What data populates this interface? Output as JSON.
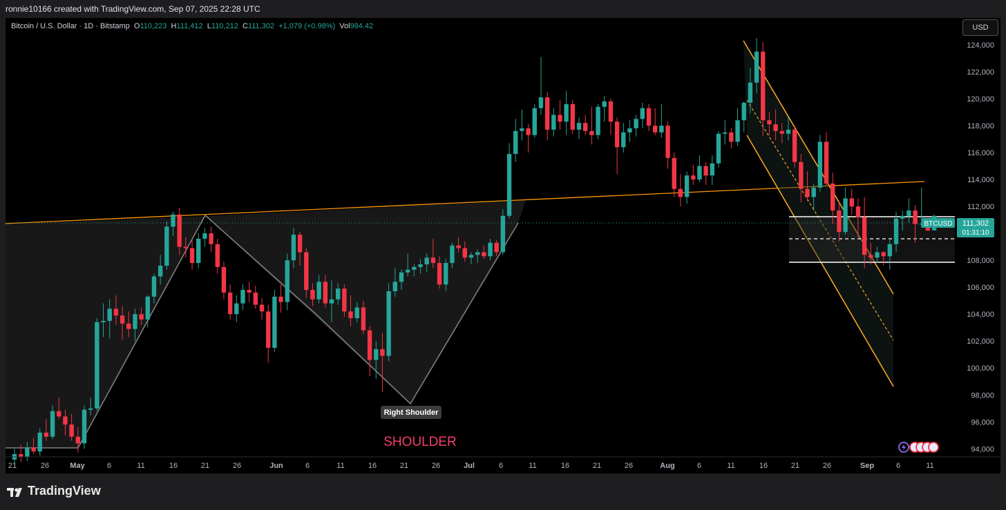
{
  "header": {
    "attribution": "ronnie10166 created with TradingView.com, Sep 07, 2025 22:28 UTC"
  },
  "legend": {
    "symbol": "Bitcoin / U.S. Dollar · 1D · Bitstamp",
    "o_label": "O",
    "o_value": "110,223",
    "h_label": "H",
    "h_value": "111,412",
    "l_label": "L",
    "l_value": "110,212",
    "c_label": "C",
    "c_value": "111,302",
    "change": "+1,079 (+0.98%)",
    "vol_label": "Vol",
    "vol_value": "984.42"
  },
  "currency_button": "USD",
  "price_tag": {
    "ticker": "BTCUSD",
    "price": "111,302",
    "countdown": "01:31:10"
  },
  "annotations": {
    "right_shoulder": "Right Shoulder",
    "shoulder": "SHOULDER"
  },
  "footer": {
    "brand": "TradingView"
  },
  "colors": {
    "up": "#26a69a",
    "down": "#f23645",
    "neckline": "#ff9800",
    "channel": "#f5a623",
    "pattern": "#808080",
    "shoulder_text": "#f23d6d"
  },
  "chart_data": {
    "type": "candlestick",
    "ylim": [
      93400,
      126000
    ],
    "y_ticks": [
      "94,000",
      "96,000",
      "98,000",
      "100,000",
      "102,000",
      "104,000",
      "106,000",
      "108,000",
      "110,000",
      "112,000",
      "114,000",
      "116,000",
      "118,000",
      "120,000",
      "122,000",
      "124,000"
    ],
    "x_tick_labels": [
      "21",
      "26",
      "May",
      "6",
      "11",
      "16",
      "21",
      "26",
      "Jun",
      "6",
      "11",
      "16",
      "21",
      "26",
      "Jul",
      "6",
      "11",
      "16",
      "21",
      "26",
      "Aug",
      "6",
      "11",
      "16",
      "21",
      "26",
      "Sep",
      "6",
      "11"
    ],
    "x_start_date": "2025-04-18",
    "candles": [
      [
        93200,
        94000,
        92800,
        93600
      ],
      [
        93600,
        94300,
        93000,
        93400
      ],
      [
        93400,
        94500,
        93100,
        94100
      ],
      [
        94100,
        94800,
        93600,
        93800
      ],
      [
        93800,
        95500,
        93500,
        95200
      ],
      [
        95200,
        96200,
        94600,
        94900
      ],
      [
        94900,
        97200,
        94700,
        96800
      ],
      [
        96800,
        97800,
        96200,
        96400
      ],
      [
        96400,
        96900,
        95000,
        95800
      ],
      [
        95800,
        96600,
        94600,
        94900
      ],
      [
        94900,
        95600,
        93700,
        94400
      ],
      [
        94400,
        97200,
        94000,
        96900
      ],
      [
        96900,
        97800,
        96500,
        97000
      ],
      [
        97000,
        103700,
        96800,
        103400
      ],
      [
        103400,
        104800,
        102300,
        103500
      ],
      [
        103500,
        105100,
        102200,
        104400
      ],
      [
        104400,
        105400,
        103200,
        103900
      ],
      [
        103900,
        104600,
        102100,
        103300
      ],
      [
        103300,
        104200,
        102300,
        102900
      ],
      [
        102900,
        104400,
        102000,
        104000
      ],
      [
        104000,
        104500,
        103200,
        103600
      ],
      [
        103600,
        105400,
        103000,
        105300
      ],
      [
        105300,
        107000,
        104800,
        106800
      ],
      [
        106800,
        108400,
        106200,
        107600
      ],
      [
        107600,
        110900,
        107300,
        110500
      ],
      [
        110500,
        111600,
        109800,
        111400
      ],
      [
        111400,
        111900,
        108400,
        109000
      ],
      [
        109000,
        109700,
        108200,
        108900
      ],
      [
        108900,
        109500,
        107300,
        107800
      ],
      [
        107800,
        110000,
        107400,
        109600
      ],
      [
        109600,
        110400,
        109000,
        110000
      ],
      [
        110000,
        110500,
        108600,
        109200
      ],
      [
        109200,
        109600,
        107000,
        107500
      ],
      [
        107500,
        107900,
        105100,
        105600
      ],
      [
        105600,
        106200,
        103600,
        104000
      ],
      [
        104000,
        105400,
        103400,
        104800
      ],
      [
        104800,
        106200,
        104300,
        105800
      ],
      [
        105800,
        106400,
        104900,
        105600
      ],
      [
        105600,
        106100,
        104400,
        104700
      ],
      [
        104700,
        105200,
        103600,
        104200
      ],
      [
        104200,
        104700,
        100400,
        101500
      ],
      [
        101500,
        105800,
        101200,
        105300
      ],
      [
        105300,
        106200,
        104100,
        104900
      ],
      [
        104900,
        108500,
        104300,
        108000
      ],
      [
        108000,
        110400,
        107400,
        109900
      ],
      [
        109900,
        110100,
        107600,
        108600
      ],
      [
        108600,
        108900,
        105200,
        105800
      ],
      [
        105800,
        106300,
        104600,
        105100
      ],
      [
        105100,
        106900,
        104800,
        106400
      ],
      [
        106400,
        106900,
        104500,
        104800
      ],
      [
        104800,
        106500,
        103400,
        105100
      ],
      [
        105100,
        106300,
        104700,
        105900
      ],
      [
        105900,
        106200,
        103800,
        104200
      ],
      [
        104200,
        105400,
        103100,
        103700
      ],
      [
        103700,
        104900,
        103400,
        104500
      ],
      [
        104500,
        105000,
        102500,
        102800
      ],
      [
        102800,
        103100,
        99400,
        100600
      ],
      [
        100600,
        102000,
        99200,
        101400
      ],
      [
        101400,
        102600,
        98200,
        100900
      ],
      [
        100900,
        106300,
        100500,
        105700
      ],
      [
        105700,
        107400,
        105300,
        106400
      ],
      [
        106400,
        107300,
        105800,
        107100
      ],
      [
        107100,
        108500,
        106800,
        107300
      ],
      [
        107300,
        107700,
        106800,
        107500
      ],
      [
        107500,
        108100,
        107000,
        107700
      ],
      [
        107700,
        108500,
        107100,
        108200
      ],
      [
        108200,
        109600,
        107400,
        107800
      ],
      [
        107800,
        108300,
        105900,
        106200
      ],
      [
        106200,
        108100,
        105700,
        107800
      ],
      [
        107800,
        109300,
        107400,
        109100
      ],
      [
        109100,
        109700,
        108600,
        108900
      ],
      [
        108900,
        109400,
        107900,
        108200
      ],
      [
        108200,
        108600,
        107700,
        108400
      ],
      [
        108400,
        108800,
        107800,
        108600
      ],
      [
        108600,
        109100,
        108100,
        108300
      ],
      [
        108300,
        109600,
        108000,
        109300
      ],
      [
        109300,
        109500,
        108300,
        108600
      ],
      [
        108600,
        111800,
        108400,
        111300
      ],
      [
        111300,
        116700,
        111100,
        115900
      ],
      [
        115900,
        118500,
        115300,
        117600
      ],
      [
        117600,
        119200,
        116900,
        117800
      ],
      [
        117800,
        118100,
        116000,
        117300
      ],
      [
        117300,
        119600,
        117100,
        119300
      ],
      [
        119300,
        123100,
        118800,
        120100
      ],
      [
        120100,
        120500,
        116900,
        117700
      ],
      [
        117700,
        119300,
        117200,
        118800
      ],
      [
        118800,
        119900,
        117700,
        118300
      ],
      [
        118300,
        120600,
        117300,
        119600
      ],
      [
        119600,
        119900,
        117400,
        117700
      ],
      [
        117700,
        118600,
        117000,
        118200
      ],
      [
        118200,
        118800,
        117300,
        117600
      ],
      [
        117600,
        119400,
        116600,
        117300
      ],
      [
        117300,
        119600,
        117000,
        119400
      ],
      [
        119400,
        120200,
        118300,
        119800
      ],
      [
        119800,
        120000,
        117300,
        118300
      ],
      [
        118300,
        118600,
        114400,
        116400
      ],
      [
        116400,
        118200,
        116000,
        117500
      ],
      [
        117500,
        118400,
        116800,
        117800
      ],
      [
        117800,
        118800,
        117200,
        118500
      ],
      [
        118500,
        119700,
        117800,
        119300
      ],
      [
        119300,
        119600,
        117600,
        118000
      ],
      [
        118000,
        119300,
        117300,
        117500
      ],
      [
        117500,
        119600,
        117100,
        118000
      ],
      [
        118000,
        118300,
        114800,
        115600
      ],
      [
        115600,
        116000,
        112700,
        113300
      ],
      [
        113300,
        114400,
        112000,
        112700
      ],
      [
        112700,
        114600,
        112200,
        114300
      ],
      [
        114300,
        115100,
        113600,
        114000
      ],
      [
        114000,
        115800,
        113800,
        115000
      ],
      [
        115000,
        115300,
        113600,
        114300
      ],
      [
        114300,
        115800,
        113600,
        115200
      ],
      [
        115200,
        117600,
        114900,
        117400
      ],
      [
        117400,
        118400,
        116600,
        117500
      ],
      [
        117500,
        117800,
        116300,
        116800
      ],
      [
        116800,
        119300,
        116500,
        118400
      ],
      [
        118400,
        119800,
        117500,
        119700
      ],
      [
        119700,
        122300,
        118900,
        121200
      ],
      [
        121200,
        124500,
        120400,
        123500
      ],
      [
        123500,
        124200,
        117200,
        118400
      ],
      [
        118400,
        119000,
        117300,
        118100
      ],
      [
        118100,
        119200,
        116900,
        117600
      ],
      [
        117600,
        118200,
        116700,
        117400
      ],
      [
        117400,
        118600,
        116900,
        117700
      ],
      [
        117700,
        118000,
        114900,
        115300
      ],
      [
        115300,
        115900,
        112300,
        113300
      ],
      [
        113300,
        114600,
        112400,
        112700
      ],
      [
        112700,
        113700,
        111700,
        113400
      ],
      [
        113400,
        117300,
        113100,
        116800
      ],
      [
        116800,
        117500,
        113500,
        113700
      ],
      [
        113700,
        114500,
        110700,
        111700
      ],
      [
        111700,
        112400,
        109400,
        110100
      ],
      [
        110100,
        113400,
        109900,
        112600
      ],
      [
        112600,
        113300,
        111400,
        112000
      ],
      [
        112000,
        112600,
        109700,
        111200
      ],
      [
        111200,
        112700,
        107400,
        108400
      ],
      [
        108400,
        109300,
        107700,
        108200
      ],
      [
        108200,
        109000,
        107800,
        108600
      ],
      [
        108600,
        108700,
        107600,
        108300
      ],
      [
        108300,
        109600,
        107300,
        109200
      ],
      [
        109200,
        111600,
        108600,
        111100
      ],
      [
        111100,
        111700,
        110200,
        111300
      ],
      [
        111300,
        112600,
        110800,
        111700
      ],
      [
        111700,
        112100,
        109300,
        110700
      ],
      [
        110700,
        113400,
        110400,
        110700
      ],
      [
        110700,
        110900,
        110200,
        110200
      ],
      [
        110223,
        111412,
        110212,
        111302
      ]
    ]
  }
}
